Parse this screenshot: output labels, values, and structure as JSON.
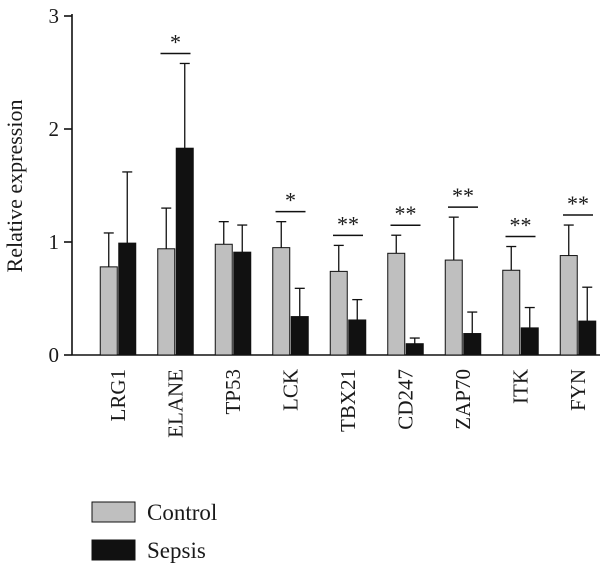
{
  "chart_data": {
    "type": "bar",
    "title": "",
    "xlabel": "",
    "ylabel": "Relative expression",
    "ylim": [
      0,
      3
    ],
    "yticks": [
      0,
      1,
      2,
      3
    ],
    "categories": [
      "LRG1",
      "ELANE",
      "TP53",
      "LCK",
      "TBX21",
      "CD247",
      "ZAP70",
      "ITK",
      "FYN"
    ],
    "series": [
      {
        "name": "Control",
        "color": "#bfbfbf",
        "values": [
          0.78,
          0.94,
          0.98,
          0.95,
          0.74,
          0.9,
          0.84,
          0.75,
          0.88
        ],
        "errors": [
          0.3,
          0.36,
          0.2,
          0.23,
          0.23,
          0.16,
          0.38,
          0.21,
          0.27
        ]
      },
      {
        "name": "Sepsis",
        "color": "#111111",
        "values": [
          0.99,
          1.83,
          0.91,
          0.34,
          0.31,
          0.1,
          0.19,
          0.24,
          0.3
        ],
        "errors": [
          0.63,
          0.75,
          0.24,
          0.25,
          0.18,
          0.05,
          0.19,
          0.18,
          0.3
        ]
      }
    ],
    "significance": [
      "",
      "*",
      "",
      "*",
      "**",
      "**",
      "**",
      "**",
      "**"
    ],
    "legend": {
      "position": "bottom-left",
      "entries": [
        "Control",
        "Sepsis"
      ]
    },
    "grid": false
  }
}
